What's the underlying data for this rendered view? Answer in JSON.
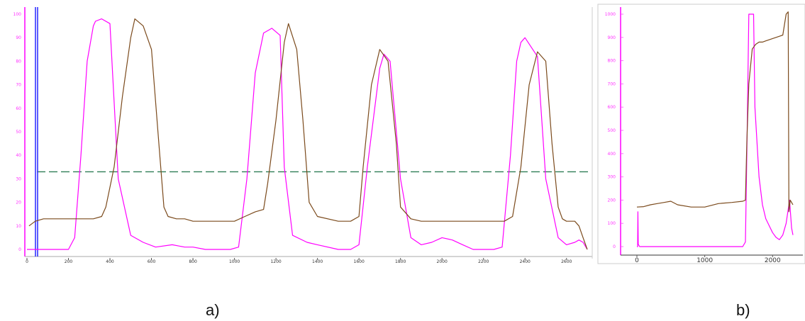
{
  "chart_data": [
    {
      "id": "a",
      "type": "line",
      "caption": "a)",
      "colors": {
        "magenta": "#ff00ff",
        "brown": "#7b4a1c",
        "threshold": "#2e7d55",
        "marker": "#3333ff"
      },
      "y_ticks": [
        "0",
        "10",
        "20",
        "30",
        "40",
        "50",
        "60",
        "70",
        "80",
        "90",
        "100"
      ],
      "x_ticks": [
        "0",
        "200",
        "400",
        "600",
        "800",
        "1000",
        "1200",
        "1400",
        "1600",
        "1800",
        "2000",
        "2200",
        "2400",
        "2600"
      ],
      "xlim": [
        0,
        2700
      ],
      "ylim": [
        0,
        100
      ],
      "threshold": 33,
      "marker_x": 0,
      "series": [
        {
          "color": "magenta",
          "x": [
            0,
            150,
            200,
            230,
            260,
            290,
            320,
            330,
            360,
            400,
            440,
            500,
            560,
            620,
            700,
            760,
            800,
            860,
            920,
            980,
            1020,
            1060,
            1100,
            1140,
            1180,
            1220,
            1240,
            1280,
            1350,
            1400,
            1500,
            1560,
            1600,
            1640,
            1700,
            1720,
            1750,
            1800,
            1850,
            1900,
            1950,
            2000,
            2050,
            2100,
            2150,
            2200,
            2250,
            2290,
            2330,
            2360,
            2380,
            2400,
            2460,
            2500,
            2560,
            2600,
            2640,
            2660,
            2680,
            2700
          ],
          "y": [
            0,
            0,
            0,
            5,
            40,
            80,
            95,
            97,
            98,
            96,
            30,
            6,
            3,
            1,
            2,
            1,
            1,
            0,
            0,
            0,
            1,
            30,
            75,
            92,
            94,
            91,
            35,
            6,
            3,
            2,
            0,
            0,
            2,
            35,
            77,
            83,
            80,
            30,
            5,
            2,
            3,
            5,
            4,
            2,
            0,
            0,
            0,
            1,
            40,
            80,
            88,
            90,
            82,
            30,
            5,
            2,
            3,
            4,
            3,
            0
          ]
        },
        {
          "color": "brown",
          "x": [
            10,
            40,
            80,
            150,
            230,
            320,
            360,
            380,
            420,
            460,
            500,
            520,
            560,
            600,
            640,
            660,
            680,
            720,
            760,
            800,
            900,
            1000,
            1050,
            1100,
            1140,
            1160,
            1200,
            1240,
            1260,
            1300,
            1330,
            1360,
            1400,
            1500,
            1560,
            1600,
            1620,
            1660,
            1700,
            1740,
            1780,
            1800,
            1850,
            1900,
            2000,
            2100,
            2200,
            2300,
            2340,
            2380,
            2420,
            2460,
            2500,
            2530,
            2560,
            2580,
            2600,
            2640,
            2660,
            2680,
            2700
          ],
          "y": [
            10,
            12,
            13,
            13,
            13,
            13,
            14,
            18,
            35,
            65,
            90,
            98,
            95,
            85,
            40,
            18,
            14,
            13,
            13,
            12,
            12,
            12,
            14,
            16,
            17,
            28,
            55,
            88,
            96,
            85,
            55,
            20,
            14,
            12,
            12,
            14,
            35,
            70,
            85,
            80,
            45,
            18,
            13,
            12,
            12,
            12,
            12,
            12,
            14,
            35,
            70,
            84,
            80,
            45,
            18,
            13,
            12,
            12,
            10,
            5,
            0
          ]
        }
      ]
    },
    {
      "id": "b",
      "type": "line",
      "caption": "b)",
      "colors": {
        "magenta": "#ff00ff",
        "brown": "#7b4a1c"
      },
      "y_ticks": [
        "0",
        "100",
        "200",
        "300",
        "400",
        "500",
        "600",
        "700",
        "800",
        "900",
        "1000"
      ],
      "x_ticks": [
        "0",
        "1000",
        "2000"
      ],
      "xlim": [
        0,
        2300
      ],
      "ylim": [
        0,
        1000
      ],
      "series": [
        {
          "color": "magenta",
          "x": [
            0,
            10,
            15,
            20,
            40,
            200,
            400,
            600,
            800,
            1000,
            1200,
            1400,
            1560,
            1600,
            1620,
            1650,
            1690,
            1720,
            1740,
            1800,
            1850,
            1900,
            1950,
            2000,
            2050,
            2100,
            2150,
            2200,
            2250,
            2280,
            2300
          ],
          "y": [
            0,
            0,
            150,
            10,
            0,
            0,
            0,
            0,
            0,
            0,
            0,
            0,
            0,
            20,
            400,
            1000,
            1000,
            1000,
            600,
            300,
            180,
            120,
            90,
            60,
            40,
            30,
            50,
            100,
            200,
            80,
            50
          ]
        },
        {
          "color": "brown",
          "x": [
            0,
            100,
            200,
            300,
            400,
            500,
            600,
            800,
            1000,
            1200,
            1400,
            1560,
            1600,
            1620,
            1650,
            1700,
            1750,
            1800,
            1850,
            1900,
            1950,
            2000,
            2050,
            2100,
            2150,
            2200,
            2230,
            2240,
            2260,
            2300
          ],
          "y": [
            170,
            172,
            180,
            185,
            190,
            195,
            180,
            170,
            170,
            185,
            190,
            195,
            200,
            450,
            700,
            850,
            870,
            880,
            880,
            885,
            890,
            895,
            900,
            905,
            910,
            1000,
            1010,
            150,
            200,
            180
          ]
        }
      ]
    }
  ]
}
